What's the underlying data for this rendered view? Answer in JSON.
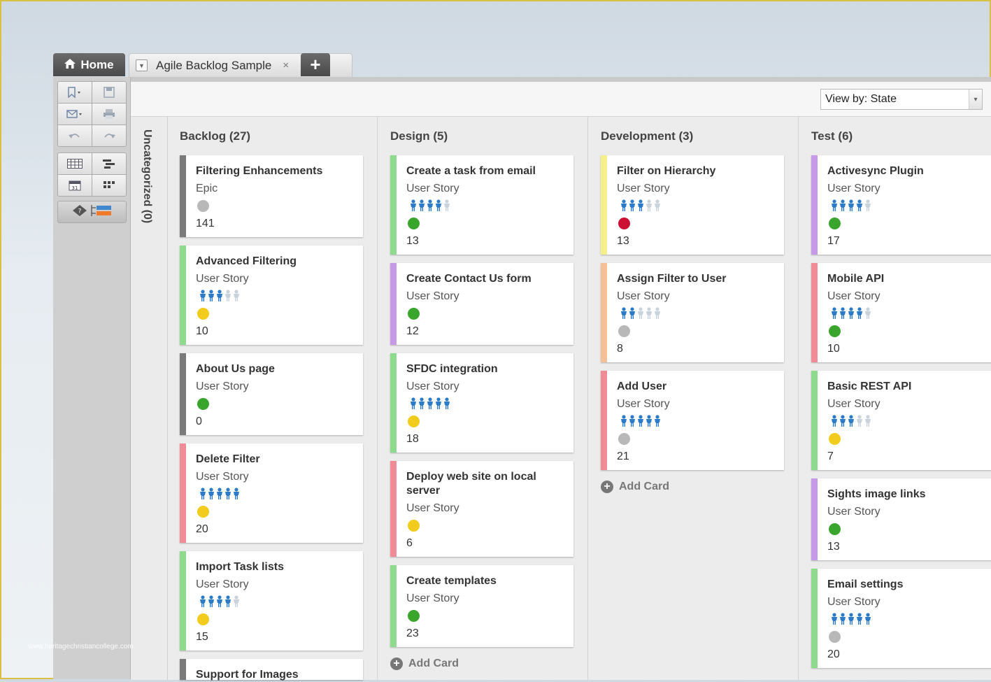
{
  "tabs": {
    "home": "Home",
    "doc": "Agile Backlog Sample",
    "close": "×",
    "add": "+"
  },
  "viewby": {
    "label": "View by: State",
    "arrow": "▾"
  },
  "uncategorized": "Uncategorized (0)",
  "add_card_label": "Add Card",
  "watermark": "www.heritagechristiancollege.com",
  "status_colors": {
    "gray": "#b8b8b8",
    "green": "#3aa52c",
    "yellow": "#f1cc1c",
    "red": "#cc1133"
  },
  "columns": [
    {
      "title": "Backlog (27)",
      "cards": [
        {
          "title": "Filtering Enhancements",
          "type": "Epic",
          "people": 0,
          "status": "gray",
          "points": "141",
          "accent": "#7a7a7a"
        },
        {
          "title": "Advanced Filtering",
          "type": "User Story",
          "people": 3,
          "status": "yellow",
          "points": "10",
          "accent": "#8edb8e"
        },
        {
          "title": "About Us page",
          "type": "User Story",
          "people": 0,
          "status": "green",
          "points": "0",
          "accent": "#7a7a7a"
        },
        {
          "title": "Delete Filter",
          "type": "User Story",
          "people": 5,
          "status": "yellow",
          "points": "20",
          "accent": "#f08c95"
        },
        {
          "title": "Import Task lists",
          "type": "User Story",
          "people": 4,
          "status": "yellow",
          "points": "15",
          "accent": "#8edb8e"
        },
        {
          "title": "Support for Images",
          "type": "",
          "people": 0,
          "status": "",
          "points": "",
          "accent": "#7a7a7a"
        }
      ]
    },
    {
      "title": "Design (5)",
      "cards": [
        {
          "title": "Create a task from email",
          "type": "User Story",
          "people": 4,
          "status": "green",
          "points": "13",
          "accent": "#8edb8e"
        },
        {
          "title": "Create Contact Us form",
          "type": "User Story",
          "people": 0,
          "status": "green",
          "points": "12",
          "accent": "#c79ae8"
        },
        {
          "title": "SFDC integration",
          "type": "User Story",
          "people": 5,
          "status": "yellow",
          "points": "18",
          "accent": "#8edb8e"
        },
        {
          "title": "Deploy web site on local server",
          "type": "User Story",
          "people": 0,
          "status": "yellow",
          "points": "6",
          "accent": "#f08c95"
        },
        {
          "title": "Create templates",
          "type": "User Story",
          "people": 0,
          "status": "green",
          "points": "23",
          "accent": "#8edb8e"
        }
      ]
    },
    {
      "title": "Development (3)",
      "cards": [
        {
          "title": "Filter on Hierarchy",
          "type": "User Story",
          "people": 3,
          "status": "red",
          "points": "13",
          "accent": "#f6f08a"
        },
        {
          "title": "Assign Filter to User",
          "type": "User Story",
          "people": 2,
          "status": "gray",
          "points": "8",
          "accent": "#f6c097"
        },
        {
          "title": "Add User",
          "type": "User Story",
          "people": 5,
          "status": "gray",
          "points": "21",
          "accent": "#f08c95"
        }
      ]
    },
    {
      "title": "Test (6)",
      "cards": [
        {
          "title": "Activesync Plugin",
          "type": "User Story",
          "people": 4,
          "status": "green",
          "points": "17",
          "accent": "#c79ae8"
        },
        {
          "title": "Mobile API",
          "type": "User Story",
          "people": 4,
          "status": "green",
          "points": "10",
          "accent": "#f08c95"
        },
        {
          "title": "Basic REST API",
          "type": "User Story",
          "people": 3,
          "status": "yellow",
          "points": "7",
          "accent": "#8edb8e"
        },
        {
          "title": "Sights image links",
          "type": "User Story",
          "people": 0,
          "status": "green",
          "points": "13",
          "accent": "#c79ae8"
        },
        {
          "title": "Email settings",
          "type": "User Story",
          "people": 5,
          "status": "gray",
          "points": "20",
          "accent": "#8edb8e"
        }
      ]
    }
  ]
}
